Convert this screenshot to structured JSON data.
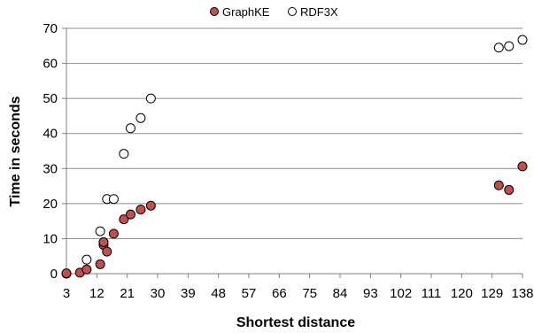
{
  "chart_data": {
    "type": "scatter",
    "title": "",
    "xlabel": "Shortest distance",
    "ylabel": "Time in seconds",
    "xlim": [
      3,
      138
    ],
    "ylim": [
      0,
      70
    ],
    "x_ticks": [
      3,
      12,
      21,
      30,
      39,
      48,
      57,
      66,
      75,
      84,
      93,
      102,
      111,
      120,
      129,
      138
    ],
    "y_ticks": [
      0,
      10,
      20,
      30,
      40,
      50,
      60,
      70
    ],
    "grid": "horizontal",
    "legend_position": "top-center",
    "series": [
      {
        "name": "GraphKE",
        "color": "#c0504d",
        "stroke": "#000000",
        "marker": "filled-circle",
        "points": [
          {
            "x": 3,
            "y": 0.1
          },
          {
            "x": 7,
            "y": 0.3
          },
          {
            "x": 9,
            "y": 1.2
          },
          {
            "x": 13,
            "y": 2.7
          },
          {
            "x": 14,
            "y": 8.2
          },
          {
            "x": 14,
            "y": 9
          },
          {
            "x": 15,
            "y": 6.3
          },
          {
            "x": 17,
            "y": 11.4
          },
          {
            "x": 20,
            "y": 15.5
          },
          {
            "x": 22,
            "y": 16.9
          },
          {
            "x": 25,
            "y": 18.3
          },
          {
            "x": 28,
            "y": 19.4
          },
          {
            "x": 131,
            "y": 25.2
          },
          {
            "x": 134,
            "y": 23.9
          },
          {
            "x": 138,
            "y": 30.6
          }
        ]
      },
      {
        "name": "RDF3X",
        "color": "#ffffff",
        "stroke": "#000000",
        "marker": "hollow-circle",
        "points": [
          {
            "x": 3,
            "y": 0
          },
          {
            "x": 9,
            "y": 4
          },
          {
            "x": 13,
            "y": 12.1
          },
          {
            "x": 15,
            "y": 21.3
          },
          {
            "x": 17,
            "y": 21.3
          },
          {
            "x": 20,
            "y": 34.2
          },
          {
            "x": 22,
            "y": 41.5
          },
          {
            "x": 25,
            "y": 44.4
          },
          {
            "x": 28,
            "y": 50
          },
          {
            "x": 131,
            "y": 64.5
          },
          {
            "x": 134,
            "y": 64.9
          },
          {
            "x": 138,
            "y": 66.7
          }
        ]
      }
    ]
  }
}
